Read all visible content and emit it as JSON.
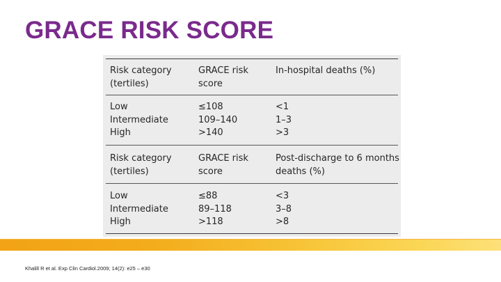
{
  "slide": {
    "title": "GRACE RISK SCORE",
    "citation": "Khalill R et al. Exp Clin Cardiol.2009; 14(2): e25 – e30"
  },
  "colors": {
    "title": "#7a2a8c",
    "panel": "#ececec",
    "band_start": "#f2a316",
    "band_end": "#fde07a"
  },
  "table": {
    "section1": {
      "headers": {
        "category": [
          "Risk category",
          "(tertiles)"
        ],
        "score": [
          "GRACE risk",
          "score"
        ],
        "outcome": [
          "In-hospital deaths (%)"
        ]
      },
      "rows": [
        {
          "category": "Low",
          "score": "≤108",
          "outcome": "<1"
        },
        {
          "category": "Intermediate",
          "score": "109–140",
          "outcome": "1–3"
        },
        {
          "category": "High",
          "score": ">140",
          "outcome": ">3"
        }
      ]
    },
    "section2": {
      "headers": {
        "category": [
          "Risk category",
          "(tertiles)"
        ],
        "score": [
          "GRACE risk",
          "score"
        ],
        "outcome": [
          "Post-discharge to 6 months",
          "deaths (%)"
        ]
      },
      "rows": [
        {
          "category": "Low",
          "score": "≤88",
          "outcome": "<3"
        },
        {
          "category": "Intermediate",
          "score": "89–118",
          "outcome": "3–8"
        },
        {
          "category": "High",
          "score": ">118",
          "outcome": ">8"
        }
      ]
    }
  }
}
